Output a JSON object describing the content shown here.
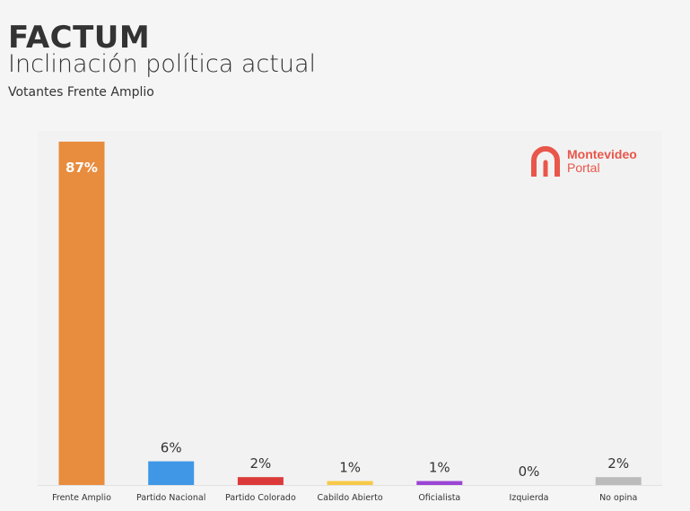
{
  "header": {
    "brand": "FACTUM",
    "title": "Inclinación política actual",
    "subtitle": "Votantes Frente Amplio"
  },
  "logo": {
    "line1": "Montevideo",
    "line2": "Portal"
  },
  "chart_data": {
    "type": "bar",
    "title": "Inclinación política actual",
    "subtitle": "Votantes Frente Amplio",
    "categories": [
      "Frente Amplio",
      "Partido Nacional",
      "Partido Colorado",
      "Cabildo Abierto",
      "Oficialista",
      "Izquierda",
      "No opina"
    ],
    "values": [
      87,
      6,
      2,
      1,
      1,
      0,
      2
    ],
    "labels": [
      "87%",
      "6%",
      "2%",
      "1%",
      "1%",
      "0%",
      "2%"
    ],
    "colors": [
      "#e88c3e",
      "#3f97e6",
      "#dc3a3a",
      "#f7c948",
      "#9b45d4",
      "#bbbbbb",
      "#bbbbbb"
    ],
    "xlabel": "",
    "ylabel": "",
    "ylim": [
      0,
      87
    ],
    "grid": false
  }
}
